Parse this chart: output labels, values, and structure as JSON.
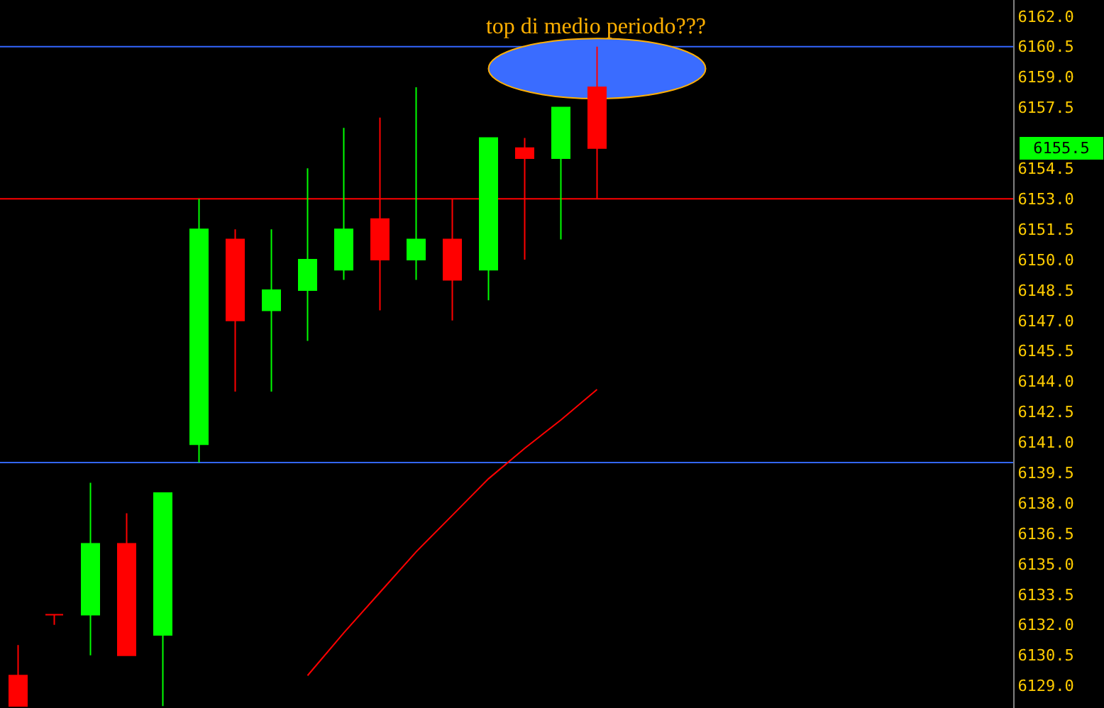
{
  "chart_data": {
    "type": "candlestick",
    "title": "top di medio periodo???",
    "categories": [
      null,
      null,
      null,
      null,
      null,
      null,
      null,
      null,
      null,
      null,
      null,
      null,
      null,
      null,
      null,
      null,
      null,
      null,
      null,
      null,
      null,
      null,
      null,
      null,
      null,
      null,
      null,
      null
    ],
    "ohlc": [
      [
        6129.5,
        6131.0,
        6128.0,
        6128.0
      ],
      [
        6132.5,
        6132.5,
        6132.0,
        6132.5
      ],
      [
        6132.5,
        6139.0,
        6130.5,
        6136.0
      ],
      [
        6136.0,
        6137.5,
        6130.5,
        6130.5
      ],
      [
        6131.5,
        6138.5,
        6128.0,
        6138.5
      ],
      [
        6140.9,
        6153.0,
        6140.0,
        6151.5
      ],
      [
        6151.0,
        6151.5,
        6143.5,
        6147.0
      ],
      [
        6147.5,
        6151.5,
        6143.5,
        6148.5
      ],
      [
        6148.5,
        6154.5,
        6146.0,
        6150.0
      ],
      [
        6149.5,
        6156.5,
        6149.0,
        6151.5
      ],
      [
        6152.0,
        6157.0,
        6147.5,
        6150.0
      ],
      [
        6150.0,
        6158.5,
        6149.0,
        6151.0
      ],
      [
        6151.0,
        6153.0,
        6147.0,
        6149.0
      ],
      [
        6149.5,
        6156.0,
        6148.0,
        6156.0
      ],
      [
        6155.5,
        6156.0,
        6150.0,
        6155.0
      ],
      [
        6155.0,
        6157.5,
        6151.0,
        6157.5
      ],
      [
        6158.5,
        6160.5,
        6153.0,
        6155.5
      ],
      null,
      null,
      null,
      null,
      null,
      null,
      null,
      null,
      null,
      null,
      null
    ],
    "colors": [
      "#ff0000",
      "#ff0000",
      "#00ff00",
      "#ff0000",
      "#00ff00",
      "#00ff00",
      "#ff0000",
      "#00ff00",
      "#00ff00",
      "#00ff00",
      "#ff0000",
      "#00ff00",
      "#ff0000",
      "#00ff00",
      "#ff0000",
      "#00ff00",
      "#ff0000",
      null,
      null,
      null,
      null,
      null,
      null,
      null,
      null,
      null,
      null,
      null
    ],
    "series": [
      {
        "type": "line",
        "color": "#ff0000",
        "values": [
          null,
          null,
          null,
          null,
          null,
          null,
          null,
          null,
          6129.5,
          6131.6,
          6133.6,
          6135.6,
          6137.4,
          6139.2,
          6140.7,
          6142.1,
          6143.6,
          null,
          null,
          null,
          null,
          null,
          null,
          null,
          null,
          null,
          null,
          null
        ]
      }
    ],
    "ref_lines": [
      {
        "axis": "y",
        "value": 6153.0,
        "color": "#ff0000"
      },
      {
        "axis": "y",
        "value": 6160.5,
        "color": "#3366ff"
      },
      {
        "axis": "y",
        "value": 6140.0,
        "color": "#3366ff"
      }
    ],
    "annotations": [
      "6155.5"
    ],
    "ylim": [
      6127.9,
      6162.8
    ],
    "yticks": [
      {
        "value": 6129.0,
        "label": "6129.0"
      },
      {
        "value": 6130.5,
        "label": "6130.5"
      },
      {
        "value": 6132.0,
        "label": "6132.0"
      },
      {
        "value": 6133.5,
        "label": "6133.5"
      },
      {
        "value": 6135.0,
        "label": "6135.0"
      },
      {
        "value": 6136.5,
        "label": "6136.5"
      },
      {
        "value": 6138.0,
        "label": "6138.0"
      },
      {
        "value": 6139.5,
        "label": "6139.5"
      },
      {
        "value": 6141.0,
        "label": "6141.0"
      },
      {
        "value": 6142.5,
        "label": "6142.5"
      },
      {
        "value": 6144.0,
        "label": "6144.0"
      },
      {
        "value": 6145.5,
        "label": "6145.5"
      },
      {
        "value": 6147.0,
        "label": "6147.0"
      },
      {
        "value": 6148.5,
        "label": "6148.5"
      },
      {
        "value": 6150.0,
        "label": "6150.0"
      },
      {
        "value": 6151.5,
        "label": "6151.5"
      },
      {
        "value": 6153.0,
        "label": "6153.0"
      },
      {
        "value": 6154.5,
        "label": "6154.5"
      },
      {
        "value": 6157.5,
        "label": "6157.5"
      },
      {
        "value": 6159.0,
        "label": "6159.0"
      },
      {
        "value": 6160.5,
        "label": "6160.5"
      },
      {
        "value": 6162.0,
        "label": "6162.0"
      }
    ],
    "tick_labels": "y",
    "grid": false
  }
}
